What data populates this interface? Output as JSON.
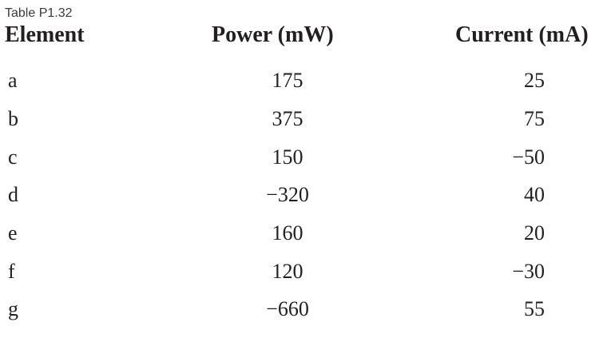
{
  "caption": "Table P1.32",
  "headers": {
    "element": "Element",
    "power": "Power (mW)",
    "current": "Current (mA)"
  },
  "rows": [
    {
      "element": "a",
      "power": "175",
      "current": "25"
    },
    {
      "element": "b",
      "power": "375",
      "current": "75"
    },
    {
      "element": "c",
      "power": "150",
      "current": "−50"
    },
    {
      "element": "d",
      "power": "−320",
      "current": "40"
    },
    {
      "element": "e",
      "power": "160",
      "current": "20"
    },
    {
      "element": "f",
      "power": "120",
      "current": "−30"
    },
    {
      "element": "g",
      "power": "−660",
      "current": "55"
    }
  ]
}
